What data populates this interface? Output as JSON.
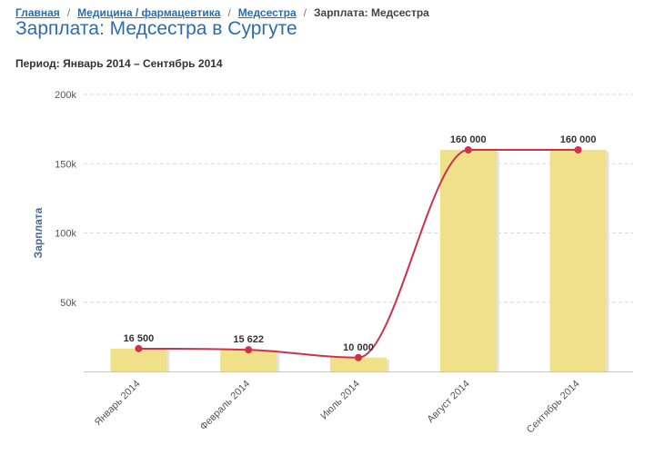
{
  "breadcrumb": {
    "items": [
      "Главная",
      "Медицина / фармацевтика",
      "Медсестра"
    ],
    "current": "Зарплата: Медсестра",
    "separator": "/"
  },
  "page_title": "Зарплата: Медсестра в Сургуте",
  "period": "Период: Январь 2014 – Сентябрь 2014",
  "colors": {
    "bar": "#f0e08a",
    "line": "#d0304a",
    "title": "#2a6db0"
  },
  "chart_data": {
    "type": "bar",
    "categories": [
      "Январь 2014",
      "Февраль 2014",
      "Июль 2014",
      "Август 2014",
      "Сентябрь 2014"
    ],
    "values": [
      16500,
      15622,
      10000,
      160000,
      160000
    ],
    "data_labels": [
      "16 500",
      "15 622",
      "10 000",
      "160 000",
      "160 000"
    ],
    "overlay_line": true,
    "ylabel": "Зарплата",
    "xlabel": "",
    "ylim": [
      0,
      200000
    ],
    "yticks": [
      {
        "value": 50000,
        "label": "50k"
      },
      {
        "value": 100000,
        "label": "100k"
      },
      {
        "value": 150000,
        "label": "150k"
      },
      {
        "value": 200000,
        "label": "200k"
      }
    ],
    "grid": true
  }
}
